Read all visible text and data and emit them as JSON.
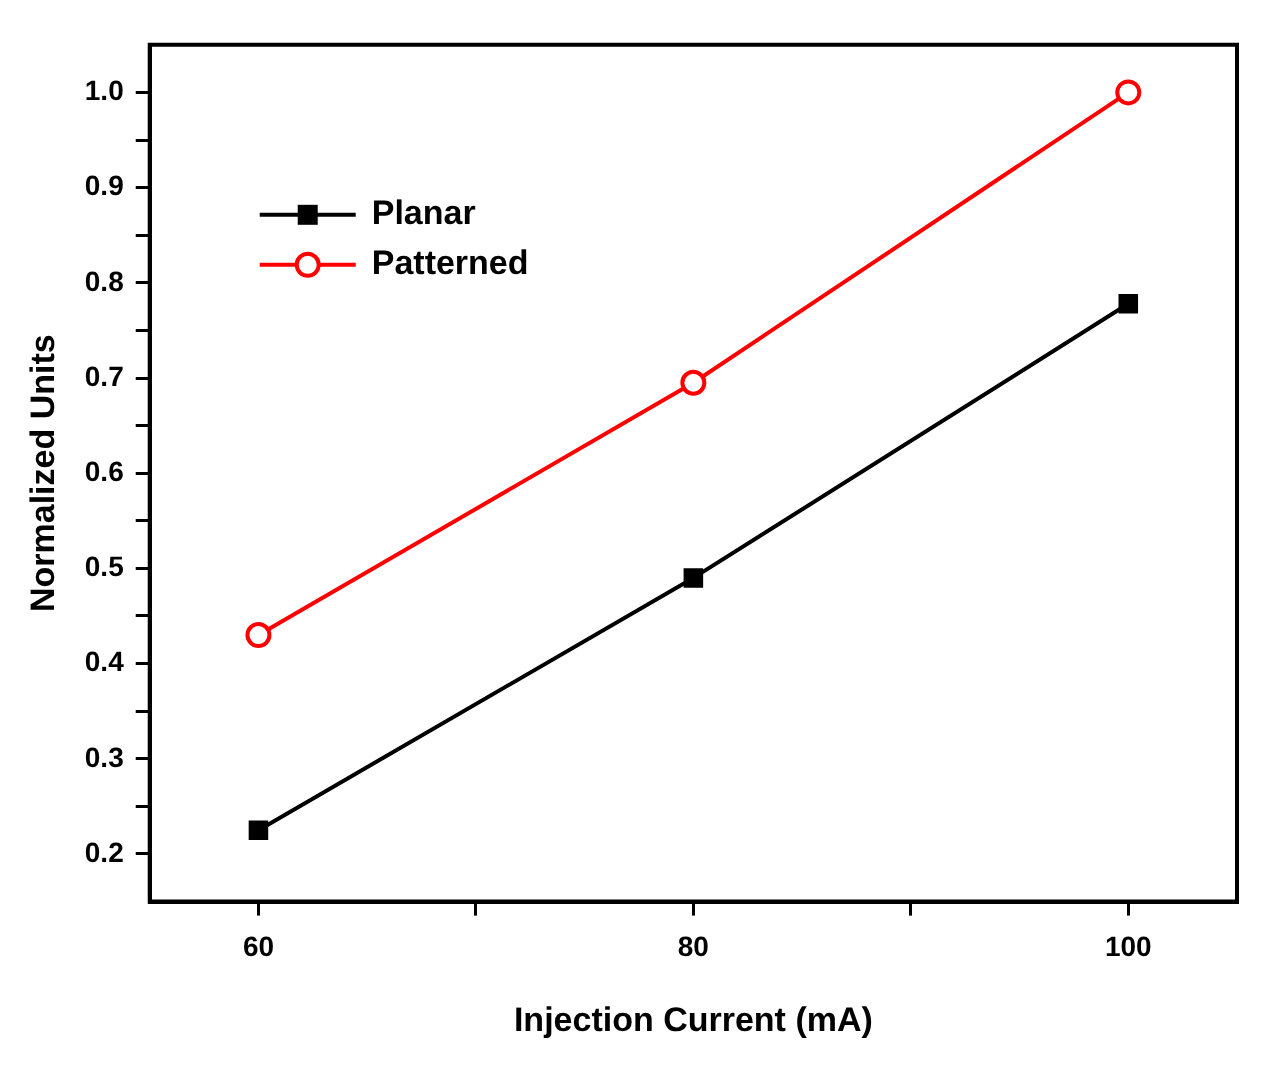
{
  "chart_data": {
    "type": "line",
    "xlabel": "Injection Current (mA)",
    "ylabel": "Normalized Units",
    "x": [
      60,
      80,
      100
    ],
    "series": [
      {
        "name": "Planar",
        "color": "#000000",
        "marker": "square",
        "values": [
          0.225,
          0.49,
          0.778
        ]
      },
      {
        "name": "Patterned",
        "color": "#ff0000",
        "marker": "circle",
        "values": [
          0.43,
          0.695,
          1.0
        ]
      }
    ],
    "xlim": [
      55,
      105
    ],
    "xticks": [
      60,
      {
        "value": 70,
        "label": null
      },
      80,
      {
        "value": 90,
        "label": null
      },
      100
    ],
    "ylim": [
      0.15,
      1.05
    ],
    "yticks": [
      {
        "value": 0.2,
        "label": "0.2"
      },
      {
        "value": 0.25,
        "label": null
      },
      {
        "value": 0.3,
        "label": "0.3"
      },
      {
        "value": 0.35,
        "label": null
      },
      {
        "value": 0.4,
        "label": "0.4"
      },
      {
        "value": 0.45,
        "label": null
      },
      {
        "value": 0.5,
        "label": "0.5"
      },
      {
        "value": 0.55,
        "label": null
      },
      {
        "value": 0.6,
        "label": "0.6"
      },
      {
        "value": 0.65,
        "label": null
      },
      {
        "value": 0.7,
        "label": "0.7"
      },
      {
        "value": 0.75,
        "label": null
      },
      {
        "value": 0.8,
        "label": "0.8"
      },
      {
        "value": 0.85,
        "label": null
      },
      {
        "value": 0.9,
        "label": "0.9"
      },
      {
        "value": 0.95,
        "label": null
      },
      {
        "value": 1.0,
        "label": "1.0"
      }
    ],
    "grid": false,
    "legend": "top left",
    "line_style": "solid"
  }
}
